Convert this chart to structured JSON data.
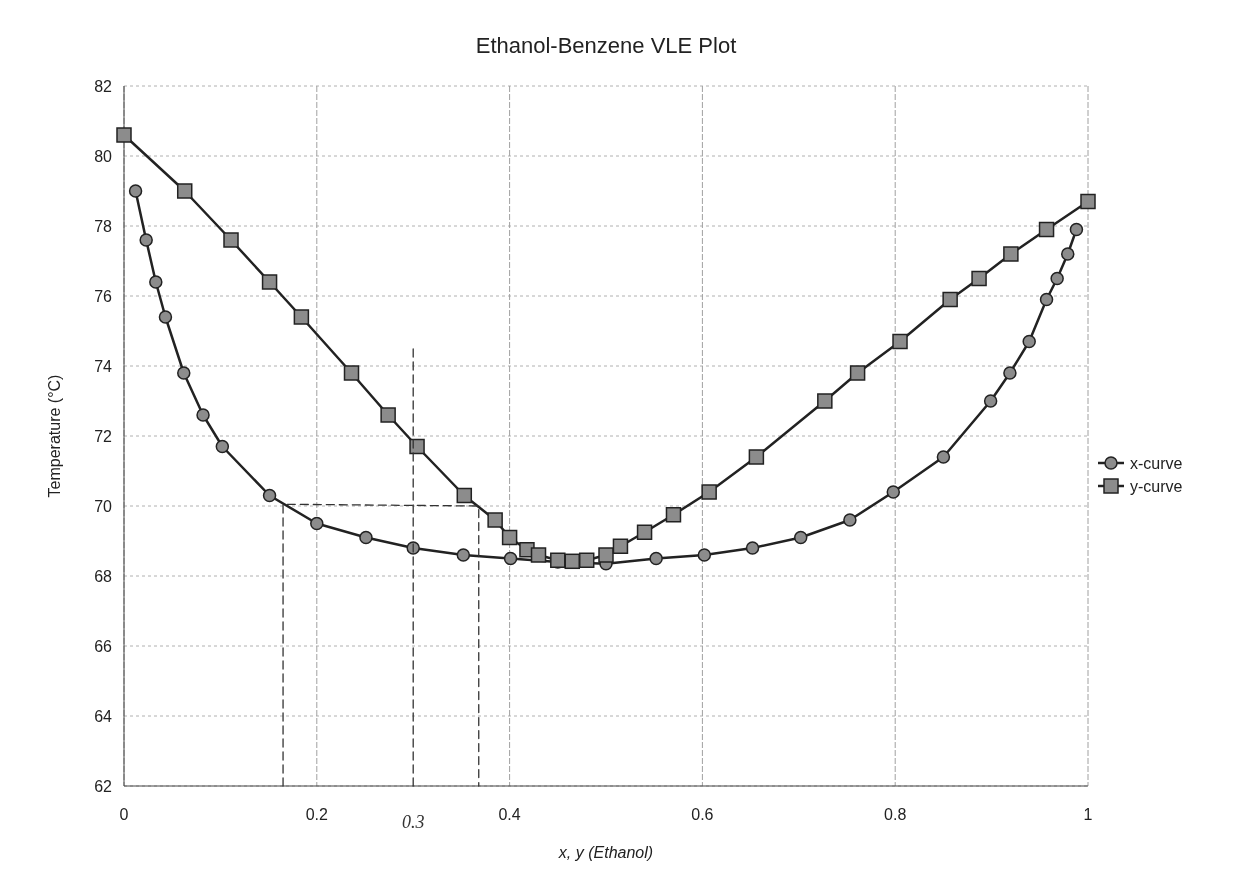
{
  "chart_data": {
    "type": "line",
    "title": "Ethanol-Benzene VLE Plot",
    "xlabel": "x, y (Ethanol)",
    "ylabel": "Temperature (°C)",
    "xlim": [
      0,
      1
    ],
    "xticks": [
      0,
      0.2,
      0.4,
      0.6,
      0.8,
      1
    ],
    "ylim": [
      62,
      82
    ],
    "yticks": [
      62,
      64,
      66,
      68,
      70,
      72,
      74,
      76,
      78,
      80,
      82
    ],
    "grid": true,
    "legend": "right",
    "series": [
      {
        "name": "x-curve",
        "color": "#222222",
        "marker": "circle",
        "x": [
          0.012,
          0.023,
          0.033,
          0.043,
          0.062,
          0.082,
          0.102,
          0.151,
          0.2,
          0.251,
          0.3,
          0.352,
          0.401,
          0.45,
          0.5,
          0.552,
          0.602,
          0.652,
          0.702,
          0.753,
          0.798,
          0.85,
          0.899,
          0.919,
          0.939,
          0.957,
          0.968,
          0.979,
          0.988
        ],
        "values": [
          79.0,
          77.6,
          76.4,
          75.4,
          73.8,
          72.6,
          71.7,
          70.3,
          69.5,
          69.1,
          68.8,
          68.6,
          68.5,
          68.4,
          68.35,
          68.5,
          68.6,
          68.8,
          69.1,
          69.6,
          70.4,
          71.4,
          73.0,
          73.8,
          74.7,
          75.9,
          76.5,
          77.2,
          77.9
        ]
      },
      {
        "name": "y-curve",
        "color": "#222222",
        "marker": "square",
        "x": [
          0,
          0.063,
          0.111,
          0.151,
          0.184,
          0.236,
          0.274,
          0.304,
          0.353,
          0.385,
          0.4,
          0.418,
          0.43,
          0.45,
          0.465,
          0.48,
          0.5,
          0.515,
          0.54,
          0.57,
          0.607,
          0.656,
          0.727,
          0.761,
          0.805,
          0.857,
          0.887,
          0.92,
          0.957,
          1
        ],
        "values": [
          80.6,
          79.0,
          77.6,
          76.4,
          75.4,
          73.8,
          72.6,
          71.7,
          70.3,
          69.6,
          69.1,
          68.75,
          68.6,
          68.45,
          68.42,
          68.45,
          68.6,
          68.85,
          69.25,
          69.75,
          70.4,
          71.4,
          73.0,
          73.8,
          74.7,
          75.9,
          76.5,
          77.2,
          77.9,
          78.7
        ]
      },
      {
        "color": "#333333",
        "marker": "none",
        "line_style": "dashed",
        "x": [
          0.165,
          0.165,
          0.368,
          0.368
        ],
        "values": [
          62,
          70.05,
          70,
          62
        ]
      },
      {
        "color": "#333333",
        "marker": "none",
        "line_style": "dashed",
        "x": [
          0.3,
          0.3
        ],
        "values": [
          62,
          74.5
        ]
      }
    ],
    "annotations": [
      {
        "text": "0.3",
        "x": 0.3,
        "y": 62
      }
    ]
  }
}
